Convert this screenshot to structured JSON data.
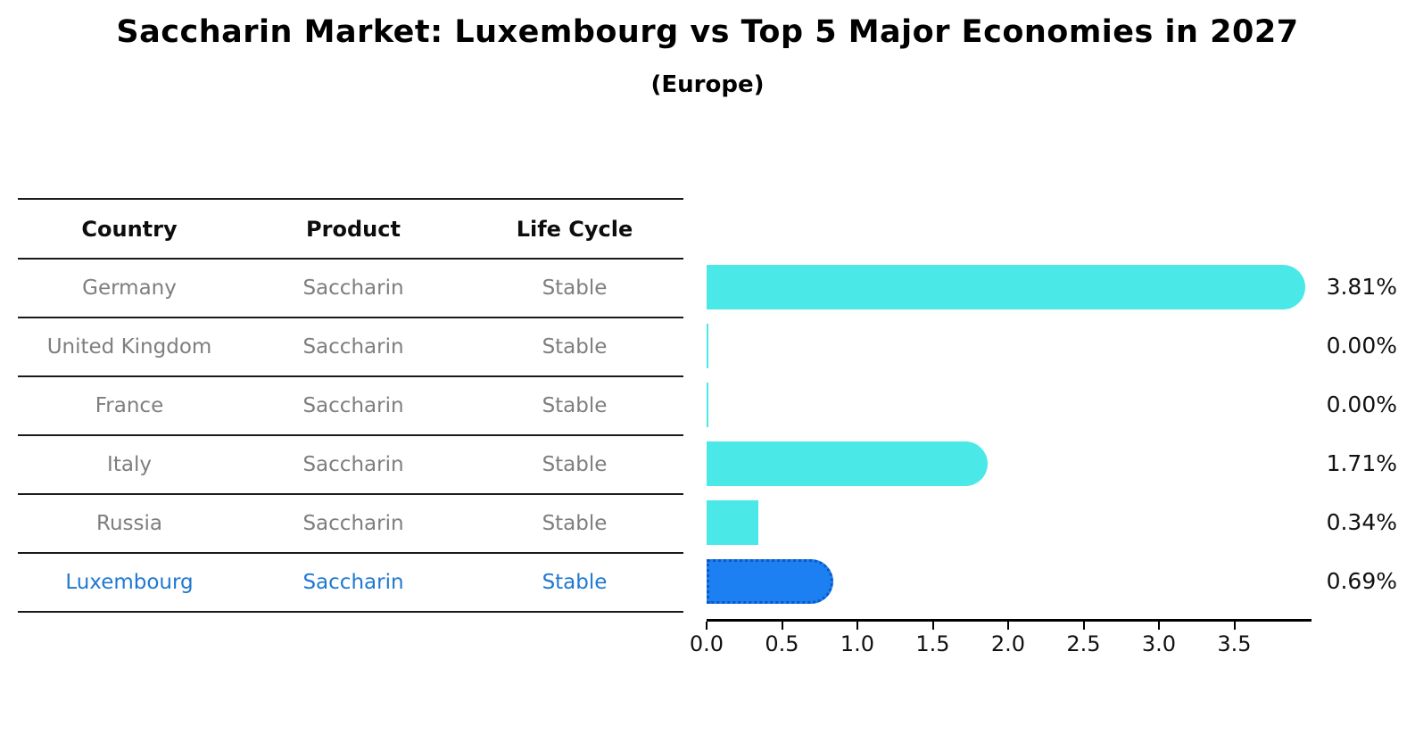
{
  "title": "Saccharin Market: Luxembourg vs Top 5 Major Economies in 2027",
  "subtitle": "(Europe)",
  "colors": {
    "bar_cyan": "#4be8e8",
    "highlight_blue": "#1c80f2",
    "highlight_border": "#0e57c4",
    "highlight_text": "#1f78d1",
    "row_text_gray": "#7e7e7e",
    "axis_black": "#000000"
  },
  "table": {
    "headers": [
      "Country",
      "Product",
      "Life Cycle"
    ],
    "rows": [
      {
        "country": "Germany",
        "product": "Saccharin",
        "life_cycle": "Stable",
        "highlighted": false
      },
      {
        "country": "United Kingdom",
        "product": "Saccharin",
        "life_cycle": "Stable",
        "highlighted": false
      },
      {
        "country": "France",
        "product": "Saccharin",
        "life_cycle": "Stable",
        "highlighted": false
      },
      {
        "country": "Italy",
        "product": "Saccharin",
        "life_cycle": "Stable",
        "highlighted": false
      },
      {
        "country": "Russia",
        "product": "Saccharin",
        "life_cycle": "Stable",
        "highlighted": false
      },
      {
        "country": "Luxembourg",
        "product": "Saccharin",
        "life_cycle": "Stable",
        "highlighted": true
      }
    ]
  },
  "chart_data": {
    "type": "bar",
    "orientation": "horizontal",
    "title": "Saccharin Market: Luxembourg vs Top 5 Major Economies in 2027",
    "subtitle": "(Europe)",
    "categories": [
      "Germany",
      "United Kingdom",
      "France",
      "Italy",
      "Russia",
      "Luxembourg"
    ],
    "values": [
      3.81,
      0.0,
      0.0,
      1.71,
      0.34,
      0.69
    ],
    "value_labels": [
      "3.81%",
      "0.00%",
      "0.00%",
      "1.71%",
      "0.34%",
      "0.69%"
    ],
    "xlabel": "",
    "ylabel": "",
    "xlim": [
      0,
      4.0
    ],
    "xticks": [
      "0.0",
      "0.5",
      "1.0",
      "1.5",
      "2.0",
      "2.5",
      "3.0",
      "3.5"
    ],
    "highlight_category": "Luxembourg",
    "grid": false,
    "legend": false
  }
}
